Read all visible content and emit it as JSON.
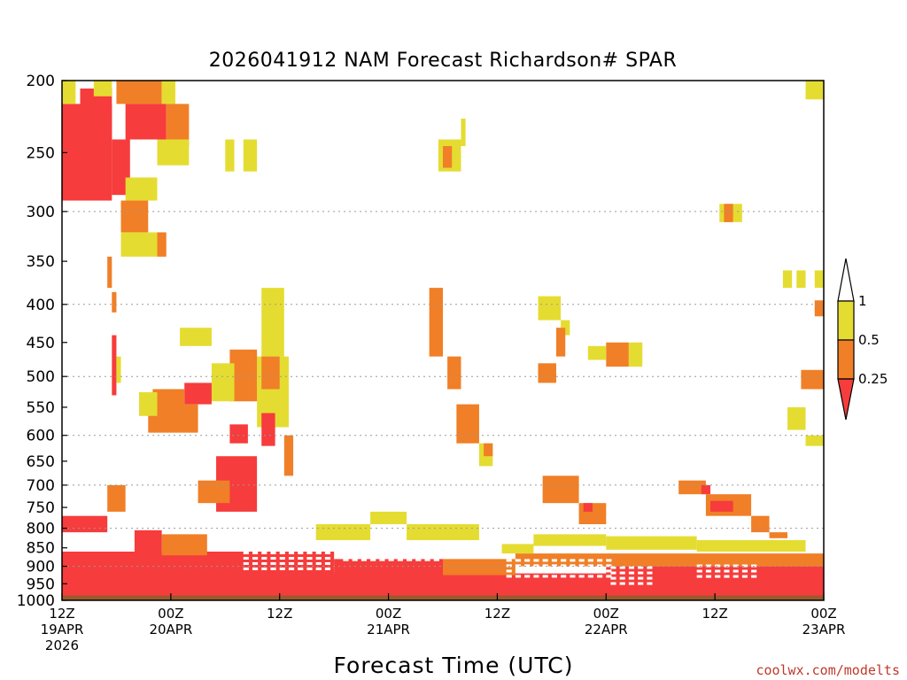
{
  "chart_data": {
    "type": "heatmap",
    "title": "2026041912 NAM Forecast Richardson# SPAR",
    "xlabel": "Forecast Time (UTC)",
    "ylabel": "",
    "credit": "coolwx.com/modelts",
    "y_scale": "log-pressure",
    "ylim": [
      1000,
      200
    ],
    "y_ticks": [
      200,
      250,
      300,
      350,
      400,
      450,
      500,
      550,
      600,
      650,
      700,
      750,
      800,
      850,
      900,
      950,
      1000
    ],
    "y_gridlines": [
      300,
      400,
      500,
      600,
      700,
      800,
      900,
      1000
    ],
    "xlim_hours": [
      0,
      84
    ],
    "x_ticks": [
      {
        "hour": 0,
        "line1": "12Z",
        "line2": "19APR",
        "line3": "2026"
      },
      {
        "hour": 12,
        "line1": "00Z",
        "line2": "20APR",
        "line3": ""
      },
      {
        "hour": 24,
        "line1": "12Z",
        "line2": "",
        "line3": ""
      },
      {
        "hour": 36,
        "line1": "00Z",
        "line2": "21APR",
        "line3": ""
      },
      {
        "hour": 48,
        "line1": "12Z",
        "line2": "",
        "line3": ""
      },
      {
        "hour": 60,
        "line1": "00Z",
        "line2": "22APR",
        "line3": ""
      },
      {
        "hour": 72,
        "line1": "12Z",
        "line2": "",
        "line3": ""
      },
      {
        "hour": 84,
        "line1": "00Z",
        "line2": "23APR",
        "line3": ""
      }
    ],
    "legend": {
      "position": "right",
      "labels": [
        "1",
        "0.5",
        "0.25"
      ],
      "colors": {
        "above_1": "#ffffff",
        "0.5-1": "#e5dc32",
        "0.25-0.5": "#f07f27",
        "below_0.25": "#f63c3c"
      }
    },
    "colors": {
      "yellow": "#e5dc32",
      "orange": "#f07f27",
      "red": "#f63c3c",
      "ground": "#9b5a2e"
    },
    "ground_below_hpa": 985,
    "regions": [
      {
        "c": "red",
        "h": [
          0,
          5.5
        ],
        "p": [
          215,
          290
        ]
      },
      {
        "c": "red",
        "h": [
          5.5,
          7.5
        ],
        "p": [
          240,
          285
        ]
      },
      {
        "c": "red",
        "h": [
          2,
          5.5
        ],
        "p": [
          205,
          240
        ]
      },
      {
        "c": "yellow",
        "h": [
          0,
          1.5
        ],
        "p": [
          200,
          215
        ]
      },
      {
        "c": "yellow",
        "h": [
          3.5,
          5.5
        ],
        "p": [
          200,
          210
        ]
      },
      {
        "c": "orange",
        "h": [
          6,
          11
        ],
        "p": [
          200,
          215
        ]
      },
      {
        "c": "yellow",
        "h": [
          11,
          12.5
        ],
        "p": [
          200,
          215
        ]
      },
      {
        "c": "red",
        "h": [
          7,
          11.5
        ],
        "p": [
          215,
          240
        ]
      },
      {
        "c": "orange",
        "h": [
          11.5,
          14
        ],
        "p": [
          215,
          245
        ]
      },
      {
        "c": "yellow",
        "h": [
          10.5,
          14
        ],
        "p": [
          240,
          260
        ]
      },
      {
        "c": "yellow",
        "h": [
          7,
          10.5
        ],
        "p": [
          270,
          290
        ]
      },
      {
        "c": "orange",
        "h": [
          6.5,
          9.5
        ],
        "p": [
          290,
          320
        ]
      },
      {
        "c": "yellow",
        "h": [
          6.5,
          10.5
        ],
        "p": [
          320,
          345
        ]
      },
      {
        "c": "orange",
        "h": [
          10.5,
          11.5
        ],
        "p": [
          320,
          345
        ]
      },
      {
        "c": "orange",
        "h": [
          5,
          5.5
        ],
        "p": [
          345,
          380
        ]
      },
      {
        "c": "orange",
        "h": [
          5.5,
          6
        ],
        "p": [
          385,
          410
        ]
      },
      {
        "c": "yellow",
        "h": [
          18,
          19
        ],
        "p": [
          240,
          265
        ]
      },
      {
        "c": "yellow",
        "h": [
          20,
          21.5
        ],
        "p": [
          240,
          265
        ]
      },
      {
        "c": "yellow",
        "h": [
          41.5,
          44
        ],
        "p": [
          240,
          265
        ]
      },
      {
        "c": "orange",
        "h": [
          42,
          43
        ],
        "p": [
          245,
          262
        ]
      },
      {
        "c": "yellow",
        "h": [
          44,
          44.5
        ],
        "p": [
          225,
          245
        ]
      },
      {
        "c": "yellow",
        "h": [
          82,
          84
        ],
        "p": [
          200,
          212
        ]
      },
      {
        "c": "yellow",
        "h": [
          72.5,
          75
        ],
        "p": [
          293,
          310
        ]
      },
      {
        "c": "orange",
        "h": [
          73,
          74
        ],
        "p": [
          293,
          310
        ]
      },
      {
        "c": "yellow",
        "h": [
          13,
          16.5
        ],
        "p": [
          430,
          455
        ]
      },
      {
        "c": "yellow",
        "h": [
          22,
          24.5
        ],
        "p": [
          380,
          470
        ]
      },
      {
        "c": "yellow",
        "h": [
          21.5,
          25
        ],
        "p": [
          470,
          585
        ]
      },
      {
        "c": "orange",
        "h": [
          18.5,
          21.5
        ],
        "p": [
          460,
          540
        ]
      },
      {
        "c": "yellow",
        "h": [
          16.5,
          19
        ],
        "p": [
          480,
          540
        ]
      },
      {
        "c": "red",
        "h": [
          13.5,
          16.5
        ],
        "p": [
          510,
          545
        ]
      },
      {
        "c": "orange",
        "h": [
          10,
          13.5
        ],
        "p": [
          520,
          570
        ]
      },
      {
        "c": "orange",
        "h": [
          9.5,
          15
        ],
        "p": [
          545,
          595
        ]
      },
      {
        "c": "yellow",
        "h": [
          8.5,
          10.5
        ],
        "p": [
          525,
          565
        ]
      },
      {
        "c": "orange",
        "h": [
          22,
          24
        ],
        "p": [
          470,
          520
        ]
      },
      {
        "c": "red",
        "h": [
          18.5,
          20.5
        ],
        "p": [
          580,
          615
        ]
      },
      {
        "c": "red",
        "h": [
          17,
          21.5
        ],
        "p": [
          640,
          760
        ]
      },
      {
        "c": "orange",
        "h": [
          15,
          18.5
        ],
        "p": [
          690,
          740
        ]
      },
      {
        "c": "red",
        "h": [
          22,
          23.5
        ],
        "p": [
          560,
          620
        ]
      },
      {
        "c": "orange",
        "h": [
          24.5,
          25.5
        ],
        "p": [
          600,
          680
        ]
      },
      {
        "c": "red",
        "h": [
          5.5,
          6
        ],
        "p": [
          440,
          530
        ]
      },
      {
        "c": "yellow",
        "h": [
          6,
          6.5
        ],
        "p": [
          470,
          510
        ]
      },
      {
        "c": "orange",
        "h": [
          40.5,
          42
        ],
        "p": [
          380,
          470
        ]
      },
      {
        "c": "orange",
        "h": [
          42.5,
          44
        ],
        "p": [
          470,
          520
        ]
      },
      {
        "c": "orange",
        "h": [
          43.5,
          46
        ],
        "p": [
          545,
          615
        ]
      },
      {
        "c": "yellow",
        "h": [
          46,
          47.5
        ],
        "p": [
          615,
          660
        ]
      },
      {
        "c": "orange",
        "h": [
          46.5,
          47.5
        ],
        "p": [
          615,
          640
        ]
      },
      {
        "c": "yellow",
        "h": [
          52.5,
          55
        ],
        "p": [
          390,
          420
        ]
      },
      {
        "c": "yellow",
        "h": [
          55,
          56
        ],
        "p": [
          420,
          440
        ]
      },
      {
        "c": "orange",
        "h": [
          52.5,
          54.5
        ],
        "p": [
          480,
          510
        ]
      },
      {
        "c": "orange",
        "h": [
          54.5,
          55.5
        ],
        "p": [
          430,
          470
        ]
      },
      {
        "c": "orange",
        "h": [
          60,
          62.5
        ],
        "p": [
          450,
          485
        ]
      },
      {
        "c": "yellow",
        "h": [
          58,
          60
        ],
        "p": [
          455,
          475
        ]
      },
      {
        "c": "yellow",
        "h": [
          62.5,
          64
        ],
        "p": [
          450,
          485
        ]
      },
      {
        "c": "orange",
        "h": [
          53,
          57
        ],
        "p": [
          680,
          740
        ]
      },
      {
        "c": "orange",
        "h": [
          57,
          60
        ],
        "p": [
          740,
          790
        ]
      },
      {
        "c": "red",
        "h": [
          57.5,
          58.5
        ],
        "p": [
          740,
          760
        ]
      },
      {
        "c": "orange",
        "h": [
          68,
          71
        ],
        "p": [
          690,
          720
        ]
      },
      {
        "c": "red",
        "h": [
          70.5,
          71.5
        ],
        "p": [
          700,
          720
        ]
      },
      {
        "c": "orange",
        "h": [
          71,
          76
        ],
        "p": [
          720,
          770
        ]
      },
      {
        "c": "red",
        "h": [
          71.5,
          74
        ],
        "p": [
          735,
          760
        ]
      },
      {
        "c": "orange",
        "h": [
          76,
          78
        ],
        "p": [
          770,
          810
        ]
      },
      {
        "c": "orange",
        "h": [
          78,
          80
        ],
        "p": [
          810,
          825
        ]
      },
      {
        "c": "orange",
        "h": [
          81.5,
          84
        ],
        "p": [
          490,
          520
        ]
      },
      {
        "c": "yellow",
        "h": [
          80,
          82
        ],
        "p": [
          550,
          590
        ]
      },
      {
        "c": "yellow",
        "h": [
          82,
          84
        ],
        "p": [
          600,
          620
        ]
      },
      {
        "c": "yellow",
        "h": [
          79.5,
          80.5
        ],
        "p": [
          360,
          380
        ]
      },
      {
        "c": "yellow",
        "h": [
          81,
          82
        ],
        "p": [
          360,
          380
        ]
      },
      {
        "c": "yellow",
        "h": [
          83,
          84
        ],
        "p": [
          360,
          380
        ]
      },
      {
        "c": "orange",
        "h": [
          83,
          84
        ],
        "p": [
          395,
          415
        ]
      },
      {
        "c": "red",
        "h": [
          0,
          5
        ],
        "p": [
          770,
          810
        ]
      },
      {
        "c": "orange",
        "h": [
          5,
          7
        ],
        "p": [
          700,
          760
        ]
      },
      {
        "c": "red",
        "h": [
          0,
          84
        ],
        "p": [
          920,
          985
        ]
      },
      {
        "c": "red",
        "h": [
          0,
          30
        ],
        "p": [
          860,
          925
        ]
      },
      {
        "c": "red",
        "h": [
          8,
          11
        ],
        "p": [
          805,
          870
        ]
      },
      {
        "c": "orange",
        "h": [
          11,
          16
        ],
        "p": [
          815,
          870
        ]
      },
      {
        "c": "red",
        "h": [
          30,
          42
        ],
        "p": [
          880,
          925
        ]
      },
      {
        "c": "orange",
        "h": [
          42,
          50
        ],
        "p": [
          880,
          925
        ]
      },
      {
        "c": "orange",
        "h": [
          50,
          84
        ],
        "p": [
          865,
          900
        ]
      },
      {
        "c": "red",
        "h": [
          60,
          84
        ],
        "p": [
          900,
          925
        ]
      },
      {
        "c": "yellow",
        "h": [
          48.5,
          52
        ],
        "p": [
          840,
          865
        ]
      },
      {
        "c": "yellow",
        "h": [
          28,
          34
        ],
        "p": [
          790,
          830
        ]
      },
      {
        "c": "yellow",
        "h": [
          34,
          38
        ],
        "p": [
          760,
          790
        ]
      },
      {
        "c": "yellow",
        "h": [
          38,
          46
        ],
        "p": [
          790,
          830
        ]
      },
      {
        "c": "yellow",
        "h": [
          52,
          60
        ],
        "p": [
          815,
          845
        ]
      },
      {
        "c": "yellow",
        "h": [
          60,
          70
        ],
        "p": [
          820,
          855
        ]
      },
      {
        "c": "yellow",
        "h": [
          70,
          82
        ],
        "p": [
          830,
          860
        ]
      }
    ],
    "gaps": [
      {
        "h": [
          20,
          30
        ],
        "p": [
          860,
          905
        ]
      },
      {
        "h": [
          31,
          42
        ],
        "p": [
          850,
          890
        ]
      },
      {
        "h": [
          49,
          60
        ],
        "p": [
          880,
          935
        ]
      },
      {
        "h": [
          60.5,
          65
        ],
        "p": [
          900,
          950
        ]
      },
      {
        "h": [
          70,
          76
        ],
        "p": [
          895,
          935
        ]
      }
    ]
  }
}
